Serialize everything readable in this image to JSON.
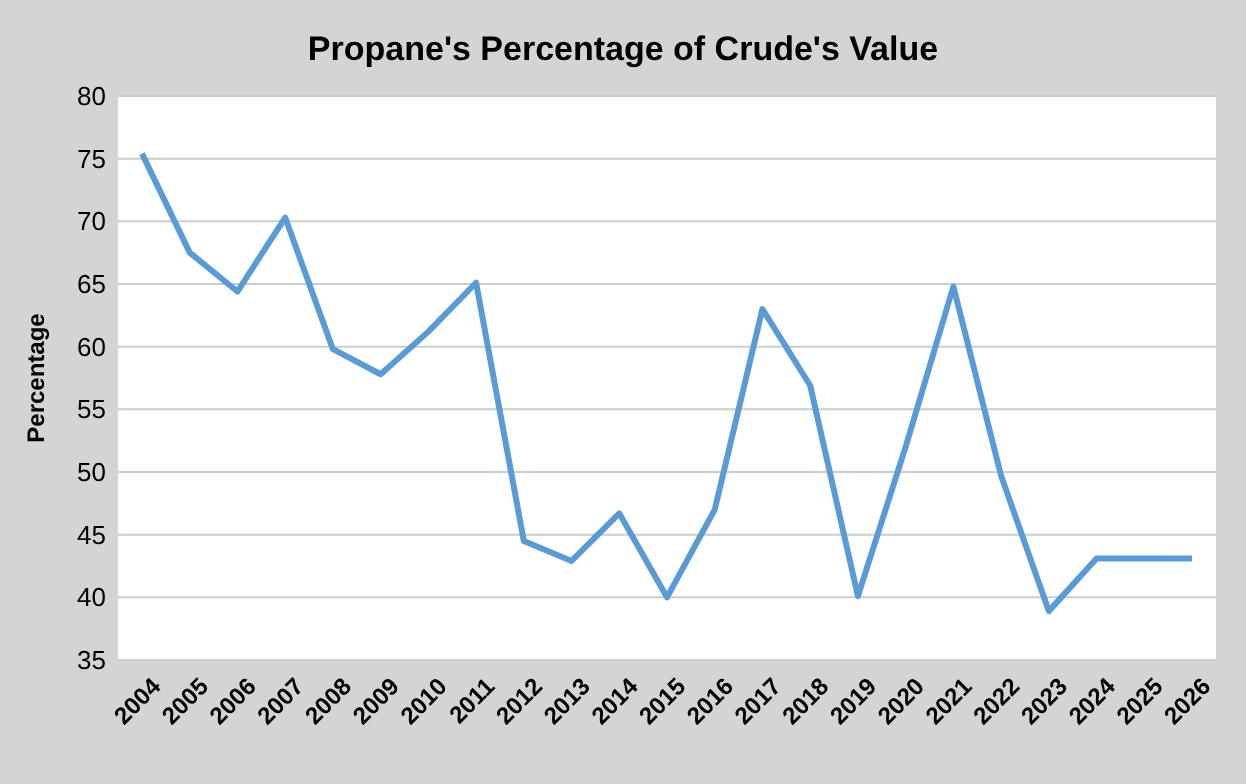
{
  "chart_data": {
    "type": "line",
    "title": "Propane's Percentage of Crude's Value",
    "ylabel": "Percentage",
    "categories": [
      "2004",
      "2005",
      "2006",
      "2007",
      "2008",
      "2009",
      "2010",
      "2011",
      "2012",
      "2013",
      "2014",
      "2015",
      "2016",
      "2017",
      "2018",
      "2019",
      "2020",
      "2021",
      "2022",
      "2023",
      "2024",
      "2025",
      "2026"
    ],
    "series": [
      {
        "color": "#5b9bd5",
        "values": [
          75.4,
          67.5,
          64.4,
          70.3,
          59.8,
          57.8,
          61.2,
          65.1,
          44.5,
          42.9,
          46.7,
          40.0,
          47.0,
          63.0,
          56.9,
          40.1,
          52.0,
          64.8,
          49.7,
          38.9,
          43.1,
          43.1,
          43.1
        ]
      }
    ],
    "ylim": [
      35,
      80
    ],
    "yticks": [
      35,
      40,
      45,
      50,
      55,
      60,
      65,
      70,
      75,
      80
    ],
    "grid": "y",
    "marker": "none",
    "line_style": "solid"
  }
}
